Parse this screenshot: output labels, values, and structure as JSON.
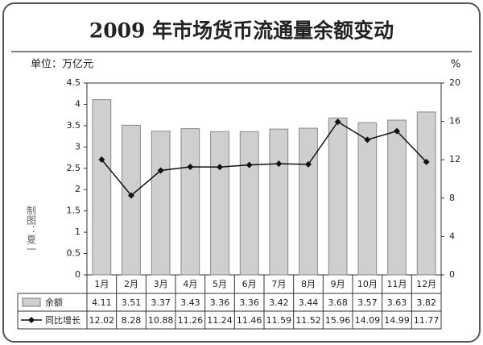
{
  "chart_data": {
    "type": "bar",
    "title": "2009 年市场货币流通量余额变动",
    "y_label": "单位：万亿元",
    "y2_label": "%",
    "credit": "制图：夏一",
    "categories": [
      "1月",
      "2月",
      "3月",
      "4月",
      "5月",
      "6月",
      "7月",
      "8月",
      "9月",
      "10月",
      "11月",
      "12月"
    ],
    "series": [
      {
        "name": "余额",
        "color": "#cfcfcf",
        "type": "bar",
        "values": [
          4.11,
          3.51,
          3.37,
          3.43,
          3.36,
          3.36,
          3.42,
          3.44,
          3.68,
          3.57,
          3.63,
          3.82
        ]
      },
      {
        "name": "同比增长",
        "color": "#111111",
        "type": "line",
        "axis": "y2",
        "values": [
          12.02,
          8.28,
          10.88,
          11.26,
          11.24,
          11.46,
          11.59,
          11.52,
          15.96,
          14.09,
          14.99,
          11.77
        ]
      }
    ],
    "ylim": [
      0,
      4.5
    ],
    "yticks": [
      0,
      0.5,
      1,
      1.5,
      2,
      2.5,
      3,
      3.5,
      4,
      4.5
    ],
    "y2lim": [
      0,
      20
    ],
    "y2ticks": [
      0,
      4,
      8,
      12,
      16,
      20
    ]
  }
}
